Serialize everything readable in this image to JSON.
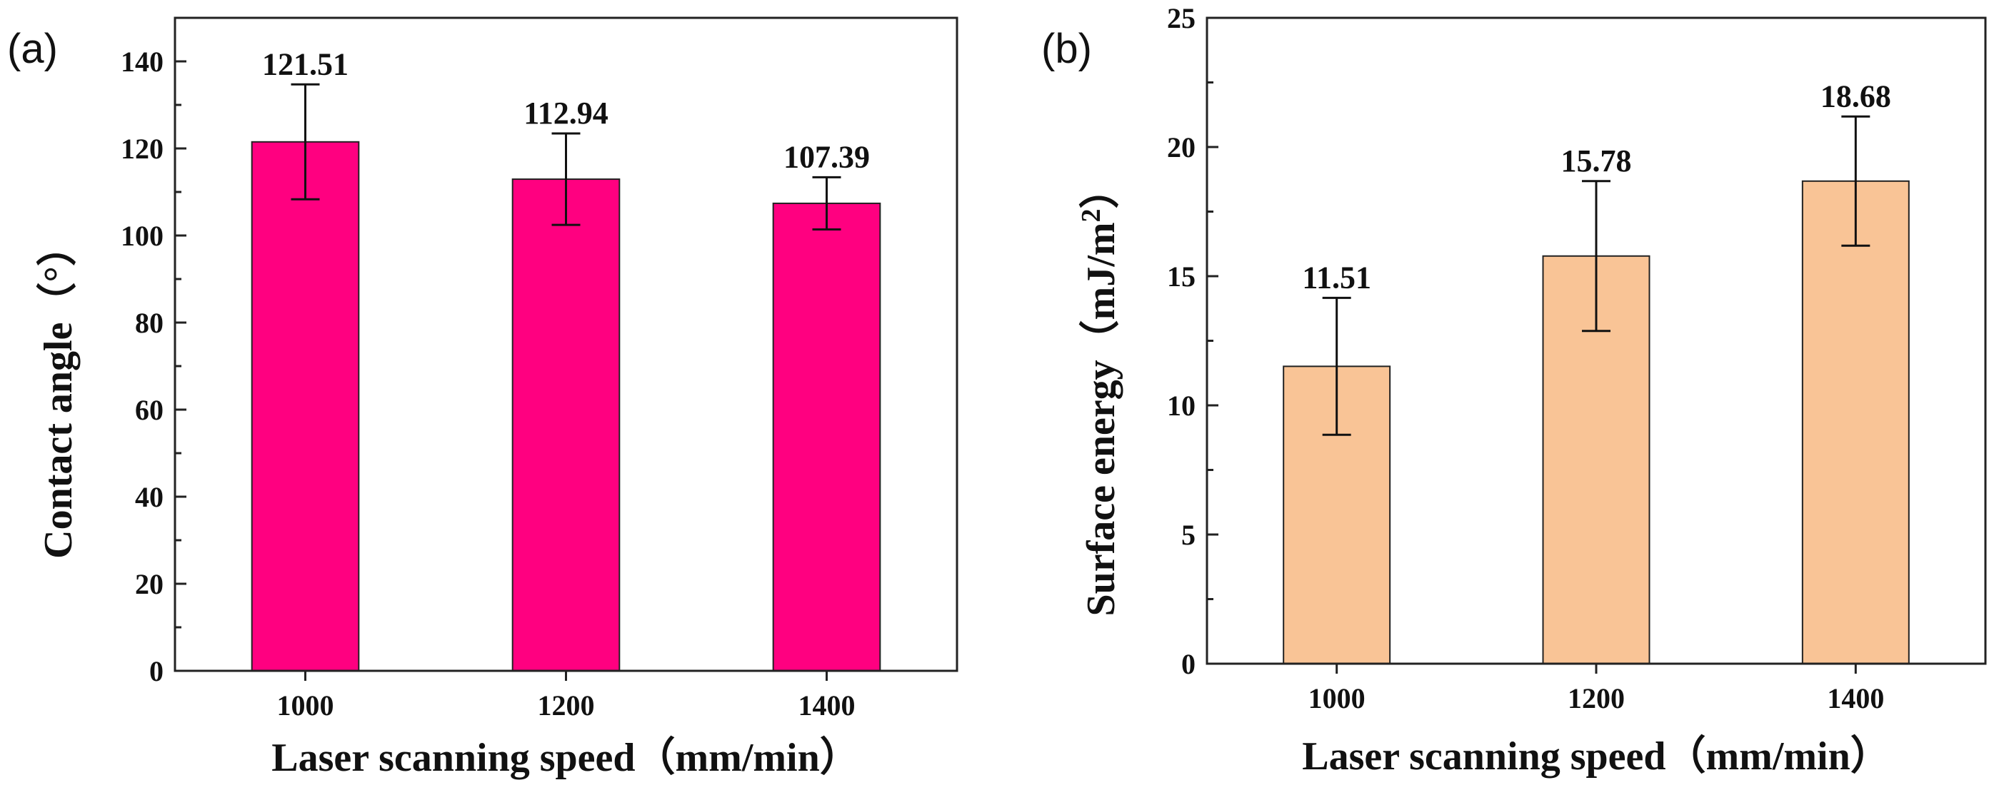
{
  "chart_data": [
    {
      "panel_label": "(a)",
      "type": "bar",
      "categories": [
        "1000",
        "1200",
        "1400"
      ],
      "values": [
        121.51,
        112.94,
        107.39
      ],
      "value_labels": [
        "121.51",
        "112.94",
        "107.39"
      ],
      "errors": [
        13.2,
        10.5,
        6.0
      ],
      "xlabel": "Laser scanning speed（mm/min）",
      "ylabel": "Contact angle（°）",
      "ylabel_superscript": "",
      "ylabel_tail": "",
      "ylim": [
        0,
        150
      ],
      "yticks": [
        0,
        20,
        40,
        60,
        80,
        100,
        120,
        140
      ],
      "bar_color": "#ff0080",
      "edge_color": "#222222"
    },
    {
      "panel_label": "(b)",
      "type": "bar",
      "categories": [
        "1000",
        "1200",
        "1400"
      ],
      "values": [
        11.51,
        15.78,
        18.68
      ],
      "value_labels": [
        "11.51",
        "15.78",
        "18.68"
      ],
      "errors": [
        2.65,
        2.9,
        2.5
      ],
      "xlabel": "Laser scanning speed（mm/min）",
      "ylabel": "Surface energy（mJ/m",
      "ylabel_superscript": "2",
      "ylabel_tail": "）",
      "ylim": [
        0,
        25
      ],
      "yticks": [
        0,
        5,
        10,
        15,
        20,
        25
      ],
      "bar_color": "#f9c496",
      "edge_color": "#222222"
    }
  ]
}
